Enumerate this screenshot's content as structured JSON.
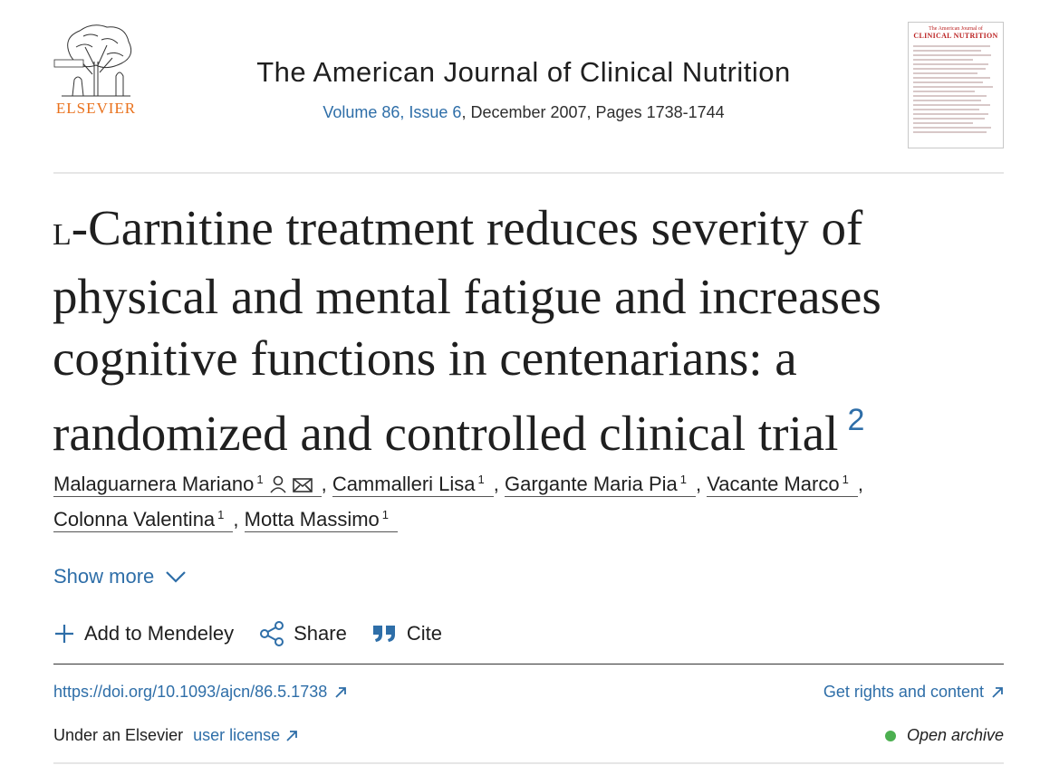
{
  "publisher": {
    "logo_text": "ELSEVIER"
  },
  "journal": {
    "title": "The American Journal of Clinical Nutrition",
    "volume_issue_link": "Volume 86, Issue 6",
    "date_pages": ", December 2007, Pages 1738-1744",
    "cover_small": "The American Journal of",
    "cover_big": "CLINICAL NUTRITION"
  },
  "article": {
    "title_smallcap": "l",
    "title_rest": "-Carnitine treatment reduces severity of physical and mental fatigue and increases cognitive functions in centenarians: a randomized and controlled clinical trial",
    "title_footnote": "2"
  },
  "authors": [
    {
      "name": "Malaguarnera Mariano",
      "sup": "1"
    },
    {
      "name": "Cammalleri Lisa",
      "sup": "1"
    },
    {
      "name": "Gargante Maria Pia",
      "sup": "1"
    },
    {
      "name": "Vacante Marco",
      "sup": "1"
    },
    {
      "name": "Colonna Valentina",
      "sup": "1"
    },
    {
      "name": "Motta Massimo",
      "sup": "1"
    }
  ],
  "show_more": "Show more",
  "actions": {
    "mendeley": "Add to Mendeley",
    "share": "Share",
    "cite": "Cite"
  },
  "links": {
    "doi": "https://doi.org/10.1093/ajcn/86.5.1738",
    "rights": "Get rights and content",
    "license_prefix": "Under an Elsevier ",
    "license_link": "user license",
    "open_archive": "Open archive"
  },
  "colors": {
    "link": "#2e6ea8",
    "publisher": "#e9711c",
    "open_archive_dot": "#4caf50"
  }
}
